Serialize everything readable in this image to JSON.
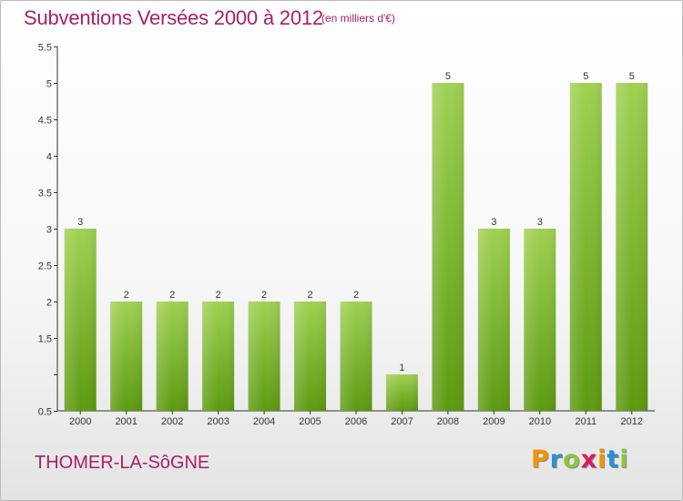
{
  "header": {
    "title": "Subventions Versées 2000 à 2012",
    "subtitle": "(en milliers d'€)"
  },
  "footer": {
    "commune": "THOMER-LA-SôGNE",
    "logo_letters": [
      "P",
      "r",
      "o",
      "x",
      "i",
      "t",
      "i"
    ],
    "logo_colors": [
      "#f29400",
      "#2a8fd6",
      "#8cc63f",
      "#d81f5b",
      "#f29400",
      "#2a8fd6",
      "#8cc63f"
    ]
  },
  "colors": {
    "bar_top": "#9fd152",
    "bar_bottom": "#5c9a10",
    "axis": "#333333",
    "text": "#333333",
    "brand": "#a81f6a"
  },
  "chart_data": {
    "type": "bar",
    "categories": [
      "2000",
      "2001",
      "2002",
      "2003",
      "2004",
      "2005",
      "2006",
      "2007",
      "2008",
      "2009",
      "2010",
      "2011",
      "2012"
    ],
    "values": [
      3,
      2,
      2,
      2,
      2,
      2,
      2,
      1,
      5,
      3,
      3,
      5,
      5
    ],
    "data_labels": [
      "3",
      "2",
      "2",
      "2",
      "2",
      "2",
      "2",
      "1",
      "5",
      "3",
      "3",
      "5",
      "5"
    ],
    "ylim": [
      0.5,
      5.5
    ],
    "yticks": [
      0.5,
      1,
      1.5,
      2,
      2.5,
      3,
      3.5,
      4,
      4.5,
      5,
      5.5
    ],
    "ytick_labels": [
      "0.5",
      "",
      "1.5",
      "2",
      "2.5",
      "3",
      "3.5",
      "4",
      "4.5",
      "5",
      "5.5"
    ],
    "title": "Subventions Versées 2000 à 2012",
    "xlabel": "",
    "ylabel": "",
    "grid": false,
    "legend": "none"
  }
}
